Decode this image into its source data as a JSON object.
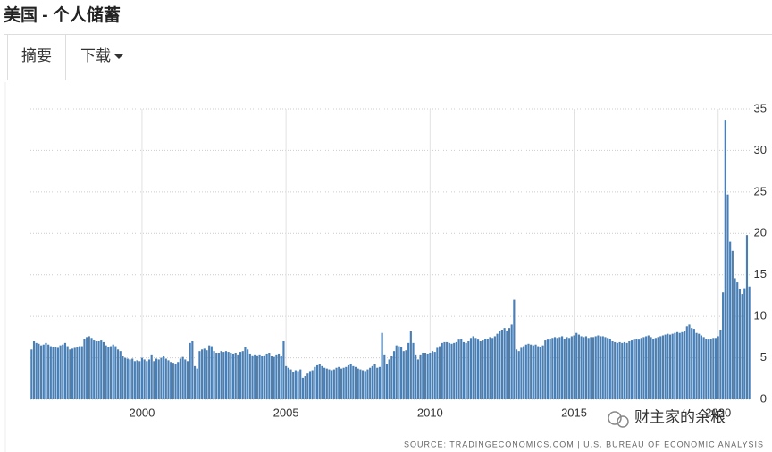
{
  "header": {
    "title": "美国 - 个人储蓄"
  },
  "tabs": [
    "摘要",
    "下载"
  ],
  "watermark": "财主家的余粮",
  "chart_data": {
    "type": "bar",
    "color": "#4a7fb5",
    "grid": true,
    "source": "SOURCE: TRADINGECONOMICS.COM  |  U.S. BUREAU OF ECONOMIC ANALYSIS",
    "ylim": [
      0,
      35
    ],
    "yticks": [
      0,
      5,
      10,
      15,
      20,
      25,
      30,
      35
    ],
    "categories": [
      null,
      null,
      null,
      null,
      null,
      null,
      null,
      null,
      null,
      null,
      null,
      null,
      null,
      null,
      null,
      null,
      null,
      null,
      null,
      null,
      null,
      null,
      null,
      null,
      null,
      null,
      null,
      null,
      null,
      null,
      null,
      null,
      null,
      null,
      null,
      null,
      null,
      null,
      null,
      null,
      null,
      null,
      null,
      null,
      null,
      null,
      "2000",
      null,
      null,
      null,
      null,
      null,
      null,
      null,
      null,
      null,
      null,
      null,
      null,
      null,
      null,
      null,
      null,
      null,
      null,
      null,
      null,
      null,
      null,
      null,
      null,
      null,
      null,
      null,
      null,
      null,
      null,
      null,
      null,
      null,
      null,
      null,
      null,
      null,
      null,
      null,
      null,
      null,
      null,
      null,
      null,
      null,
      null,
      null,
      null,
      null,
      null,
      null,
      null,
      null,
      null,
      null,
      null,
      null,
      null,
      null,
      "2005",
      null,
      null,
      null,
      null,
      null,
      null,
      null,
      null,
      null,
      null,
      null,
      null,
      null,
      null,
      null,
      null,
      null,
      null,
      null,
      null,
      null,
      null,
      null,
      null,
      null,
      null,
      null,
      null,
      null,
      null,
      null,
      null,
      null,
      null,
      null,
      null,
      null,
      null,
      null,
      null,
      null,
      null,
      null,
      null,
      null,
      null,
      null,
      null,
      null,
      null,
      null,
      null,
      null,
      null,
      null,
      null,
      null,
      null,
      null,
      "2010",
      null,
      null,
      null,
      null,
      null,
      null,
      null,
      null,
      null,
      null,
      null,
      null,
      null,
      null,
      null,
      null,
      null,
      null,
      null,
      null,
      null,
      null,
      null,
      null,
      null,
      null,
      null,
      null,
      null,
      null,
      null,
      null,
      null,
      null,
      null,
      null,
      null,
      null,
      null,
      null,
      null,
      null,
      null,
      null,
      null,
      null,
      null,
      null,
      null,
      null,
      null,
      null,
      null,
      null,
      null,
      null,
      null,
      null,
      null,
      "2015",
      null,
      null,
      null,
      null,
      null,
      null,
      null,
      null,
      null,
      null,
      null,
      null,
      null,
      null,
      null,
      null,
      null,
      null,
      null,
      null,
      null,
      null,
      null,
      null,
      null,
      null,
      null,
      null,
      null,
      null,
      null,
      null,
      null,
      null,
      null,
      null,
      null,
      null,
      null,
      null,
      null,
      null,
      null,
      null,
      null,
      null,
      null,
      null,
      null,
      null,
      null,
      null,
      null,
      null,
      null,
      null,
      null,
      null,
      null,
      "2020",
      null,
      null,
      null,
      null,
      null,
      null,
      null,
      null,
      null,
      null,
      null,
      null,
      null
    ],
    "values": [
      6.0,
      7.0,
      6.8,
      6.7,
      6.5,
      6.6,
      6.8,
      6.6,
      6.4,
      6.3,
      6.3,
      6.2,
      6.5,
      6.6,
      6.8,
      6.4,
      6.0,
      6.1,
      6.2,
      6.3,
      6.4,
      6.4,
      7.3,
      7.5,
      7.6,
      7.4,
      7.1,
      7.0,
      7.0,
      7.1,
      6.9,
      6.5,
      6.3,
      6.4,
      6.6,
      6.4,
      6.0,
      5.8,
      5.2,
      5.0,
      4.9,
      4.8,
      4.9,
      4.6,
      4.7,
      4.6,
      5.0,
      4.8,
      4.6,
      4.8,
      5.4,
      4.6,
      4.9,
      4.8,
      5.0,
      5.2,
      4.9,
      4.7,
      4.5,
      4.4,
      4.3,
      4.5,
      4.9,
      5.1,
      4.8,
      4.6,
      6.8,
      7.0,
      4.0,
      3.7,
      5.8,
      6.0,
      6.1,
      5.9,
      6.5,
      6.4,
      5.8,
      5.6,
      5.6,
      5.8,
      5.7,
      5.8,
      5.7,
      5.6,
      5.5,
      5.6,
      5.4,
      5.7,
      5.8,
      6.3,
      6.0,
      5.5,
      5.3,
      5.4,
      5.3,
      5.4,
      5.2,
      5.3,
      5.5,
      5.6,
      5.2,
      5.1,
      5.4,
      5.5,
      5.2,
      7.0,
      4.0,
      3.8,
      3.6,
      3.3,
      3.5,
      3.4,
      3.6,
      2.6,
      2.8,
      3.1,
      3.4,
      3.5,
      3.9,
      4.1,
      4.2,
      4.0,
      3.8,
      3.7,
      3.6,
      3.5,
      3.6,
      3.8,
      3.9,
      3.7,
      3.8,
      3.9,
      4.1,
      4.3,
      4.0,
      3.9,
      3.7,
      3.6,
      3.5,
      3.4,
      3.6,
      3.8,
      4.0,
      4.2,
      3.8,
      3.9,
      8.0,
      5.4,
      4.2,
      4.8,
      5.2,
      5.8,
      6.5,
      6.4,
      6.3,
      5.8,
      5.9,
      6.8,
      8.2,
      6.8,
      5.4,
      4.8,
      5.4,
      5.6,
      5.6,
      5.5,
      5.6,
      5.8,
      5.7,
      6.2,
      6.4,
      6.8,
      6.9,
      6.9,
      6.8,
      6.7,
      6.8,
      6.9,
      7.2,
      7.3,
      6.9,
      6.8,
      7.0,
      7.4,
      7.6,
      7.4,
      7.2,
      7.0,
      7.1,
      7.3,
      7.3,
      7.5,
      7.4,
      7.6,
      7.9,
      8.2,
      8.4,
      8.6,
      8.3,
      8.6,
      9.0,
      12.0,
      6.0,
      5.8,
      6.2,
      6.4,
      6.6,
      6.7,
      6.6,
      6.5,
      6.6,
      6.4,
      6.3,
      6.5,
      7.1,
      7.2,
      7.3,
      7.4,
      7.5,
      7.4,
      7.5,
      7.6,
      7.3,
      7.5,
      7.4,
      7.6,
      7.7,
      8.0,
      7.8,
      7.6,
      7.5,
      7.6,
      7.4,
      7.5,
      7.5,
      7.6,
      7.7,
      7.6,
      7.6,
      7.5,
      7.4,
      7.3,
      7.0,
      6.9,
      6.8,
      6.9,
      6.8,
      6.9,
      6.8,
      7.0,
      7.1,
      7.2,
      7.3,
      7.2,
      7.4,
      7.5,
      7.6,
      7.7,
      7.5,
      7.3,
      7.4,
      7.5,
      7.6,
      7.7,
      7.8,
      7.9,
      7.8,
      7.9,
      8.0,
      8.1,
      8.0,
      8.1,
      8.2,
      8.8,
      9.0,
      8.6,
      8.5,
      8.0,
      7.9,
      7.7,
      7.5,
      7.3,
      7.2,
      7.3,
      7.4,
      7.4,
      7.6,
      8.4,
      12.9,
      33.7,
      24.7,
      19.0,
      17.9,
      14.6,
      14.1,
      13.3,
      12.7,
      13.4,
      19.8,
      13.6
    ]
  }
}
